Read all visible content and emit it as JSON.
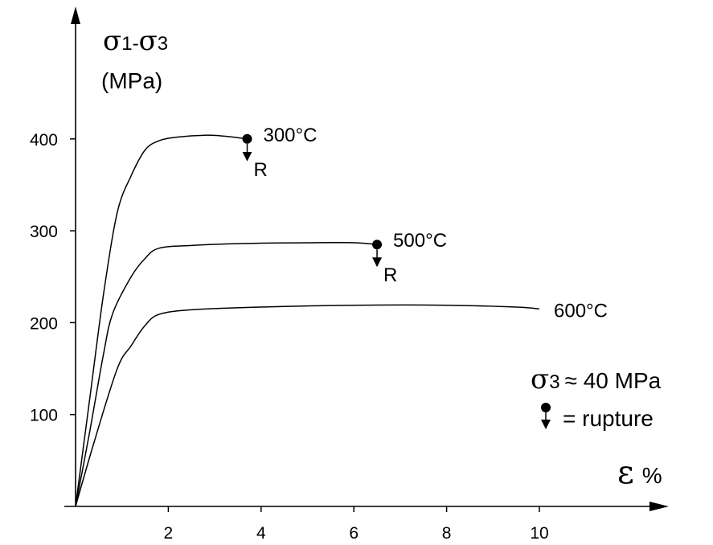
{
  "chart_data": {
    "type": "line",
    "title": "",
    "ylabel": {
      "symbol": "σ",
      "sub1": "1",
      "dash": "-",
      "sub2": "3",
      "unit": "(MPa)"
    },
    "xlabel": {
      "symbol": "ε",
      "unit": "%"
    },
    "xlim": [
      0,
      12.5
    ],
    "ylim": [
      0,
      450
    ],
    "xticks": [
      2,
      4,
      6,
      8,
      10
    ],
    "yticks": [
      100,
      200,
      300,
      400
    ],
    "grid": false,
    "series": [
      {
        "name": "300°C",
        "rupture": true,
        "rupture_label": "R",
        "points": [
          [
            0,
            0
          ],
          [
            0.3,
            115
          ],
          [
            0.6,
            230
          ],
          [
            0.9,
            320
          ],
          [
            1.2,
            360
          ],
          [
            1.5,
            388
          ],
          [
            1.8,
            398
          ],
          [
            2.2,
            402
          ],
          [
            2.8,
            404
          ],
          [
            3.2,
            403
          ],
          [
            3.7,
            400
          ]
        ]
      },
      {
        "name": "500°C",
        "rupture": true,
        "rupture_label": "R",
        "points": [
          [
            0,
            0
          ],
          [
            0.3,
            80
          ],
          [
            0.6,
            165
          ],
          [
            0.8,
            210
          ],
          [
            1.2,
            250
          ],
          [
            1.5,
            270
          ],
          [
            1.8,
            281
          ],
          [
            2.5,
            284
          ],
          [
            3.5,
            286
          ],
          [
            5.0,
            287
          ],
          [
            6.0,
            287
          ],
          [
            6.5,
            285
          ]
        ]
      },
      {
        "name": "600°C",
        "rupture": false,
        "points": [
          [
            0,
            0
          ],
          [
            0.4,
            70
          ],
          [
            0.9,
            150
          ],
          [
            1.2,
            175
          ],
          [
            1.5,
            197
          ],
          [
            1.8,
            209
          ],
          [
            2.5,
            214
          ],
          [
            4.0,
            217
          ],
          [
            6.0,
            219
          ],
          [
            8.0,
            219
          ],
          [
            9.5,
            217
          ],
          [
            10.0,
            215
          ]
        ]
      }
    ],
    "annotations": {
      "sigma3": {
        "symbol": "σ",
        "sub": "3",
        "text": "≈ 40 MPa"
      },
      "legend_rupture": "= rupture"
    }
  }
}
